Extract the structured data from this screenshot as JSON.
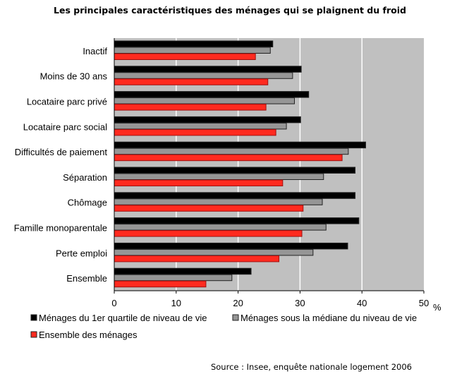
{
  "chart_data": {
    "type": "bar",
    "orientation": "horizontal",
    "title": "Les principales caractéristiques des ménages qui se plaignent du froid",
    "categories": [
      "Inactif",
      "Moins de 30 ans",
      "Locataire parc privé",
      "Locataire parc social",
      "Difficultés de paiement",
      "Séparation",
      "Chômage",
      "Famille monoparentale",
      "Perte emploi",
      "Ensemble"
    ],
    "series": [
      {
        "name": "Ménages du 1er quartile de niveau de vie",
        "color": "#000000",
        "values": [
          25.6,
          30.2,
          31.4,
          30.1,
          40.6,
          38.9,
          38.9,
          39.5,
          37.7,
          22.1
        ]
      },
      {
        "name": "Ménages sous la médiane du niveau de vie",
        "color": "#969696",
        "values": [
          25.2,
          28.8,
          29.1,
          27.8,
          37.8,
          33.8,
          33.6,
          34.2,
          32.1,
          19.0
        ]
      },
      {
        "name": "Ensemble des ménages",
        "color": "#ff2a1f",
        "values": [
          22.8,
          24.8,
          24.5,
          26.1,
          36.8,
          27.2,
          30.5,
          30.3,
          26.6,
          14.8
        ]
      }
    ],
    "xlim": [
      0,
      50
    ],
    "xticks": [
      "0",
      "10",
      "20",
      "30",
      "40",
      "50"
    ],
    "xunit": "%",
    "grid": true,
    "plot_background": "#c0c0c0",
    "legend": "bottom",
    "source": "Source : Insee, enquête nationale logement 2006"
  }
}
